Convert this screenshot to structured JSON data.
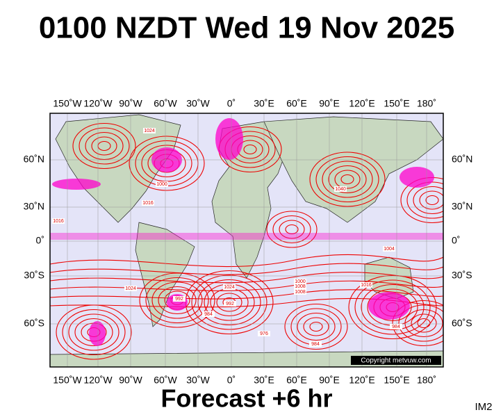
{
  "header": {
    "title": "0100 NZDT Wed 19 Nov 2025"
  },
  "map": {
    "longitude_labels": [
      "150˚W",
      "120˚W",
      "90˚W",
      "60˚W",
      "30˚W",
      "0˚",
      "30˚E",
      "60˚E",
      "90˚E",
      "120˚E",
      "150˚E",
      "180˚"
    ],
    "latitude_labels": [
      "60˚N",
      "30˚N",
      "0˚",
      "30˚S",
      "60˚S"
    ],
    "isobar_labels": [
      "1024",
      "1000",
      "1016",
      "1040",
      "1024",
      "1016",
      "1008",
      "1024",
      "1008",
      "1000",
      "992",
      "984",
      "976",
      "984",
      "1016",
      "992",
      "984",
      "1004"
    ],
    "copyright": "Copyright metvuw.com"
  },
  "footer": {
    "forecast": "Forecast +6 hr",
    "image_id": "IM2"
  }
}
